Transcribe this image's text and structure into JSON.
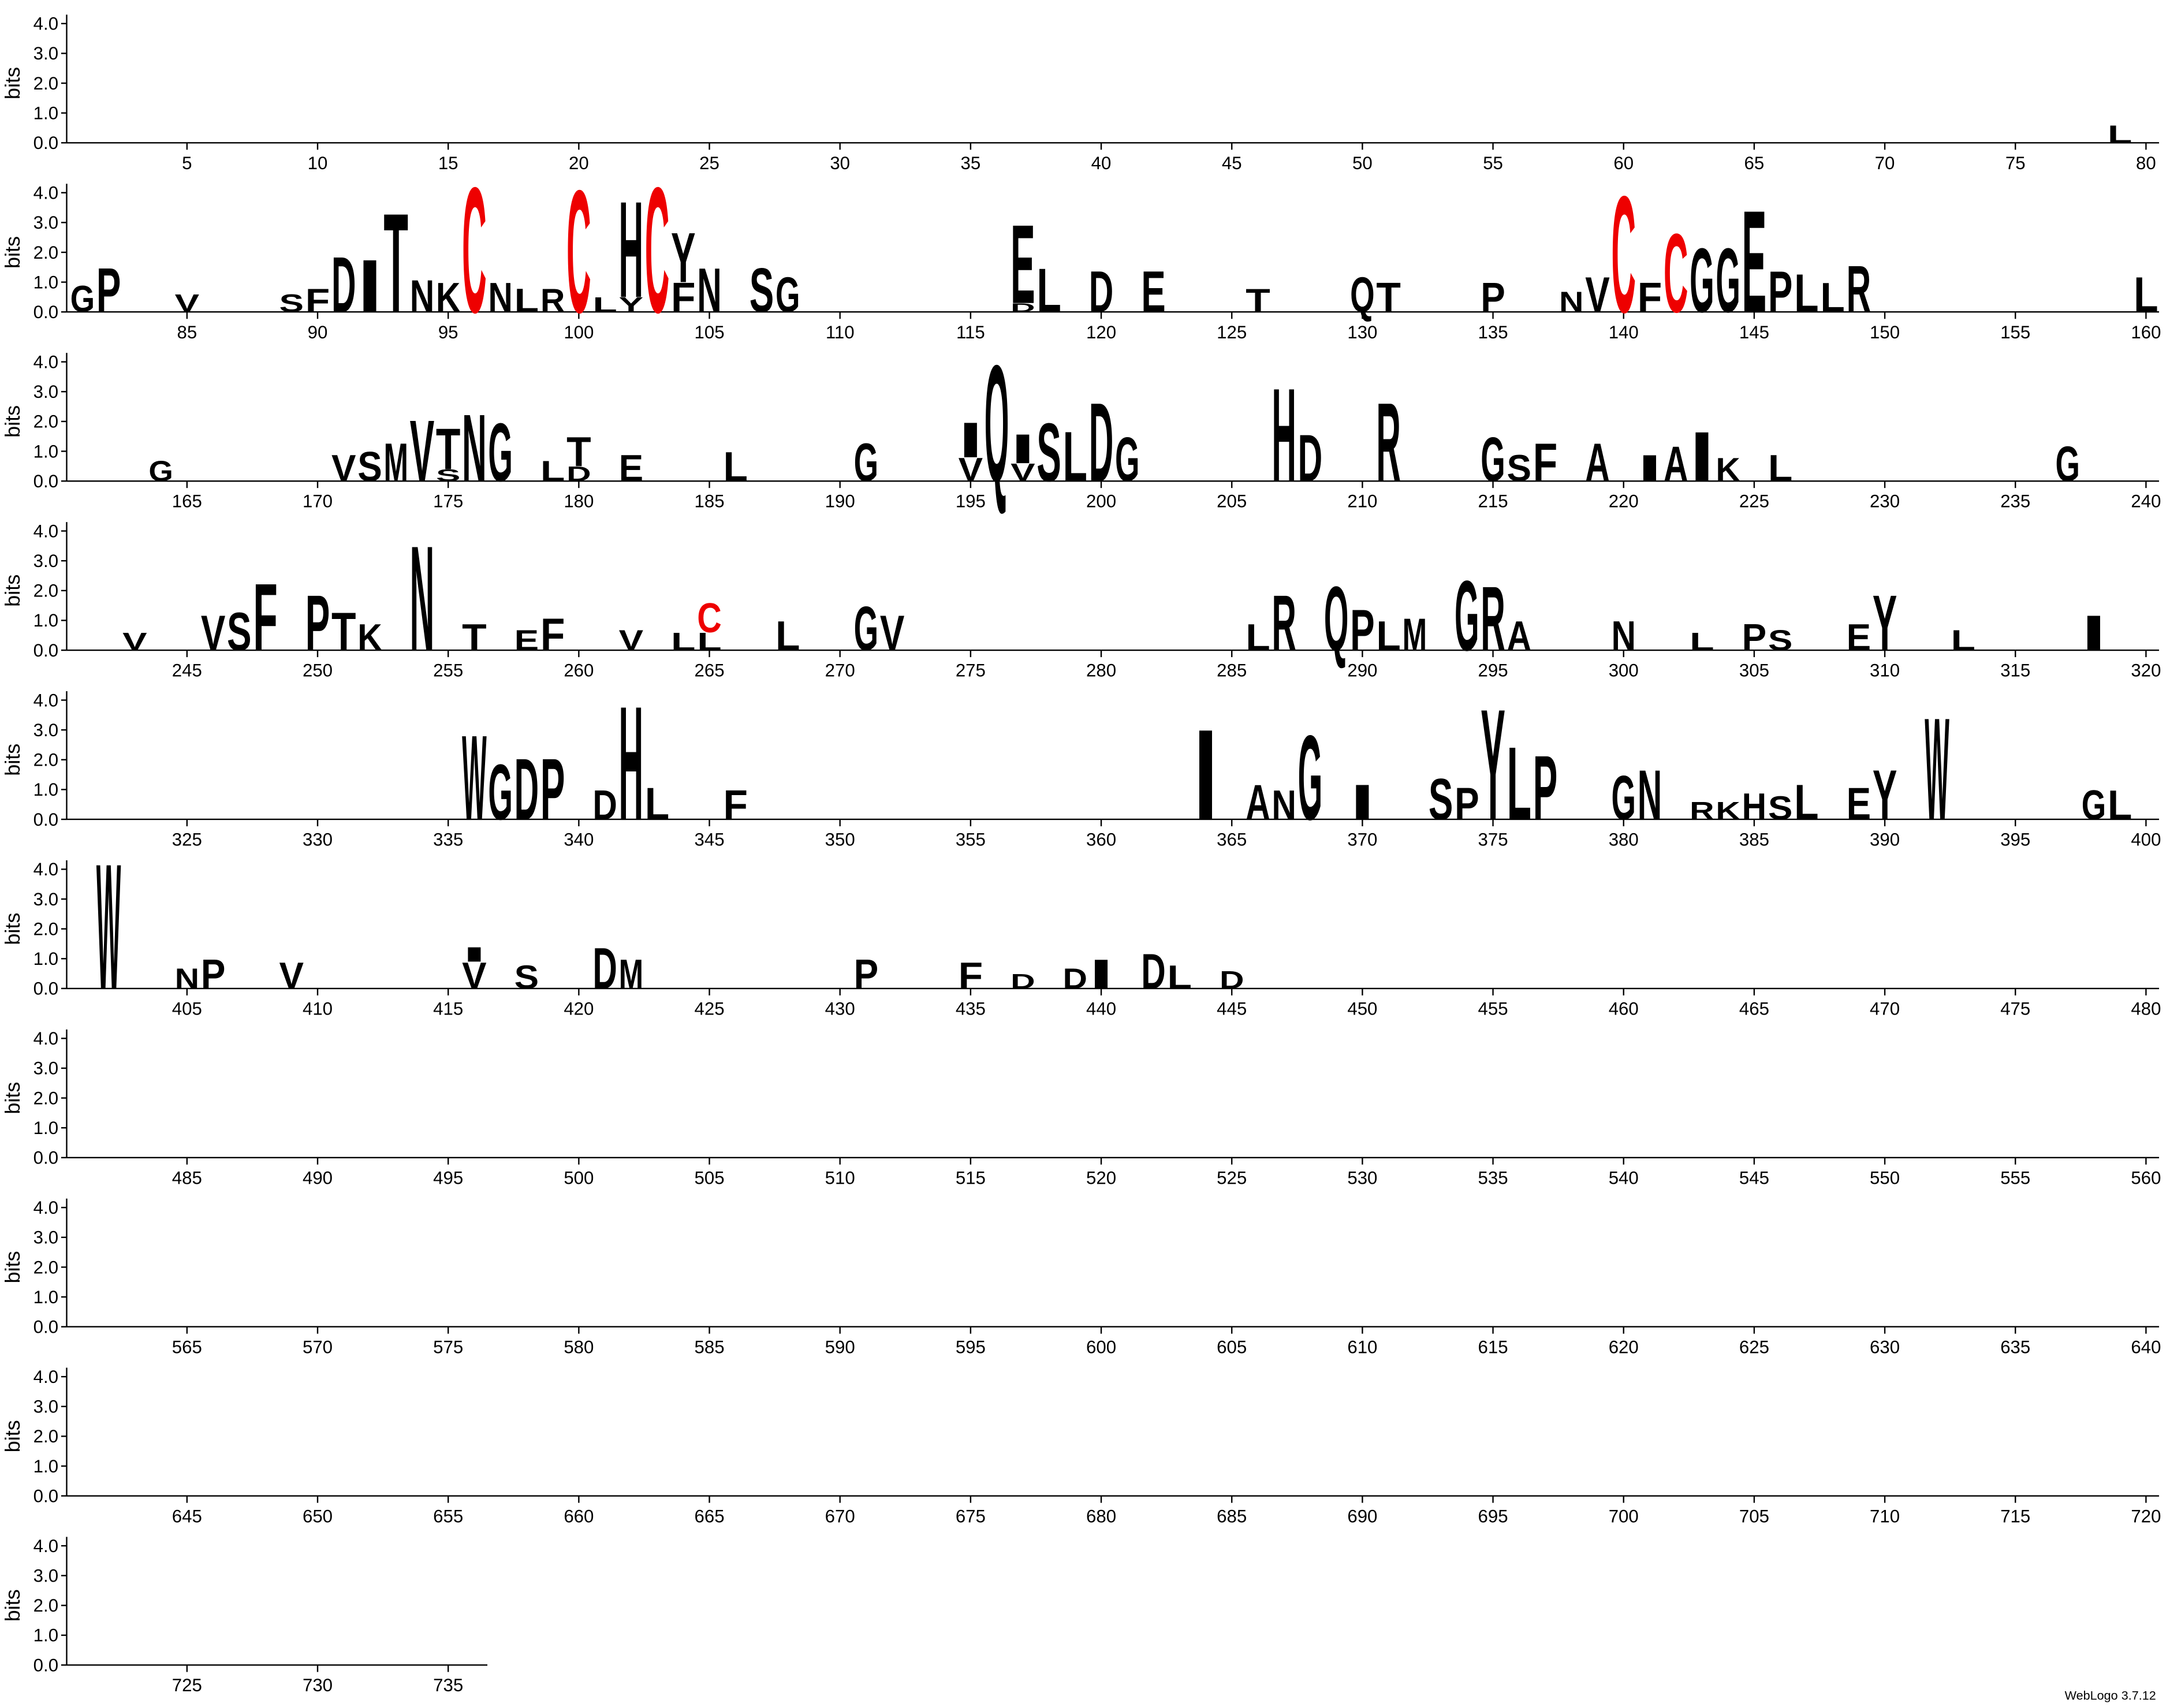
{
  "chart_data": {
    "type": "logo",
    "ylabel": "bits",
    "footer": "WebLogo 3.7.12",
    "ylim": [
      0,
      4.3
    ],
    "yticks": [
      {
        "value": 0,
        "label": "0.0"
      },
      {
        "value": 1,
        "label": "1.0"
      },
      {
        "value": 2,
        "label": "2.0"
      },
      {
        "value": 3,
        "label": "3.0"
      },
      {
        "value": 4,
        "label": "4.0"
      }
    ],
    "xlim": [
      1,
      736
    ],
    "xticks": [
      5,
      10,
      15,
      20,
      25,
      30,
      35,
      40,
      45,
      50,
      55,
      60,
      65,
      70,
      75,
      80,
      85,
      90,
      95,
      100,
      105,
      110,
      115,
      120,
      125,
      130,
      135,
      140,
      145,
      150,
      155,
      160,
      165,
      170,
      175,
      180,
      185,
      190,
      195,
      200,
      205,
      210,
      215,
      220,
      225,
      230,
      235,
      240,
      245,
      250,
      255,
      260,
      265,
      270,
      275,
      280,
      285,
      290,
      295,
      300,
      305,
      310,
      315,
      320,
      325,
      330,
      335,
      340,
      345,
      350,
      355,
      360,
      365,
      370,
      375,
      380,
      385,
      390,
      395,
      400,
      405,
      410,
      415,
      420,
      425,
      430,
      435,
      440,
      445,
      450,
      455,
      460,
      465,
      470,
      475,
      480,
      485,
      490,
      495,
      500,
      505,
      510,
      515,
      520,
      525,
      530,
      535,
      540,
      545,
      550,
      555,
      560,
      565,
      570,
      575,
      580,
      585,
      590,
      595,
      600,
      605,
      610,
      615,
      620,
      625,
      630,
      635,
      640,
      645,
      650,
      655,
      660,
      665,
      670,
      675,
      680,
      685,
      690,
      695,
      700,
      705,
      710,
      715,
      720,
      725,
      730,
      735
    ],
    "color": "#000000",
    "letter_colors": {
      "C": "#ee0000"
    },
    "letters": [
      {
        "position": 79,
        "letter": "L",
        "bits": 0.6
      },
      {
        "position": 81,
        "letter": "G",
        "bits": 0.9
      },
      {
        "position": 82,
        "letter": "P",
        "bits": 1.5
      },
      {
        "position": 85,
        "letter": "V",
        "bits": 0.6
      },
      {
        "position": 89,
        "letter": "S",
        "bits": 0.6
      },
      {
        "position": 90,
        "letter": "F",
        "bits": 0.8
      },
      {
        "position": 91,
        "letter": "D",
        "bits": 1.9
      },
      {
        "position": 92,
        "letter": "I",
        "bits": 1.8
      },
      {
        "position": 93,
        "letter": "T",
        "bits": 3.4
      },
      {
        "position": 94,
        "letter": "N",
        "bits": 1.1
      },
      {
        "position": 95,
        "letter": "K",
        "bits": 1.0
      },
      {
        "position": 96,
        "letter": "C",
        "bits": 4.3
      },
      {
        "position": 97,
        "letter": "N",
        "bits": 1.0
      },
      {
        "position": 98,
        "letter": "L",
        "bits": 0.8
      },
      {
        "position": 99,
        "letter": "R",
        "bits": 0.8
      },
      {
        "position": 100,
        "letter": "C",
        "bits": 4.2
      },
      {
        "position": 101,
        "letter": "L",
        "bits": 0.5
      },
      {
        "position": 102,
        "letter": "Y",
        "bits": 0.5
      },
      {
        "position": 102,
        "letter": "H",
        "bits": 3.3
      },
      {
        "position": 103,
        "letter": "C",
        "bits": 4.3
      },
      {
        "position": 104,
        "letter": "F",
        "bits": 1.0
      },
      {
        "position": 104,
        "letter": "Y",
        "bits": 1.7
      },
      {
        "position": 105,
        "letter": "N",
        "bits": 1.5
      },
      {
        "position": 107,
        "letter": "S",
        "bits": 1.5
      },
      {
        "position": 108,
        "letter": "G",
        "bits": 1.2
      },
      {
        "position": 117,
        "letter": "D",
        "bits": 0.3
      },
      {
        "position": 117,
        "letter": "E",
        "bits": 2.7
      },
      {
        "position": 118,
        "letter": "L",
        "bits": 1.5
      },
      {
        "position": 120,
        "letter": "D",
        "bits": 1.4
      },
      {
        "position": 122,
        "letter": "E",
        "bits": 1.4
      },
      {
        "position": 126,
        "letter": "T",
        "bits": 0.8
      },
      {
        "position": 130,
        "letter": "Q",
        "bits": 1.2
      },
      {
        "position": 131,
        "letter": "T",
        "bits": 1.0
      },
      {
        "position": 135,
        "letter": "P",
        "bits": 1.0
      },
      {
        "position": 138,
        "letter": "N",
        "bits": 0.7
      },
      {
        "position": 139,
        "letter": "V",
        "bits": 1.2
      },
      {
        "position": 140,
        "letter": "C",
        "bits": 4.0
      },
      {
        "position": 141,
        "letter": "F",
        "bits": 1.0
      },
      {
        "position": 142,
        "letter": "C",
        "bits": 2.7
      },
      {
        "position": 143,
        "letter": "G",
        "bits": 2.2
      },
      {
        "position": 144,
        "letter": "G",
        "bits": 2.2
      },
      {
        "position": 145,
        "letter": "E",
        "bits": 3.5
      },
      {
        "position": 146,
        "letter": "P",
        "bits": 1.4
      },
      {
        "position": 147,
        "letter": "L",
        "bits": 1.3
      },
      {
        "position": 148,
        "letter": "L",
        "bits": 1.0
      },
      {
        "position": 149,
        "letter": "R",
        "bits": 1.6
      },
      {
        "position": 160,
        "letter": "L",
        "bits": 1.2
      },
      {
        "position": 164,
        "letter": "G",
        "bits": 0.7
      },
      {
        "position": 171,
        "letter": "V",
        "bits": 0.9
      },
      {
        "position": 172,
        "letter": "S",
        "bits": 1.0
      },
      {
        "position": 173,
        "letter": "M",
        "bits": 1.3
      },
      {
        "position": 174,
        "letter": "V",
        "bits": 2.1
      },
      {
        "position": 175,
        "letter": "S",
        "bits": 0.4
      },
      {
        "position": 175,
        "letter": "T",
        "bits": 1.4
      },
      {
        "position": 176,
        "letter": "N",
        "bits": 2.3
      },
      {
        "position": 177,
        "letter": "G",
        "bits": 2.0
      },
      {
        "position": 179,
        "letter": "L",
        "bits": 0.7
      },
      {
        "position": 180,
        "letter": "D",
        "bits": 0.5
      },
      {
        "position": 180,
        "letter": "T",
        "bits": 1.0
      },
      {
        "position": 182,
        "letter": "E",
        "bits": 0.9
      },
      {
        "position": 186,
        "letter": "L",
        "bits": 1.0
      },
      {
        "position": 191,
        "letter": "G",
        "bits": 1.3
      },
      {
        "position": 195,
        "letter": "V",
        "bits": 0.8
      },
      {
        "position": 195,
        "letter": "I",
        "bits": 1.2
      },
      {
        "position": 196,
        "letter": "Q",
        "bits": 4.0
      },
      {
        "position": 197,
        "letter": "V",
        "bits": 0.6
      },
      {
        "position": 197,
        "letter": "I",
        "bits": 1.0
      },
      {
        "position": 198,
        "letter": "S",
        "bits": 2.0
      },
      {
        "position": 199,
        "letter": "L",
        "bits": 1.7
      },
      {
        "position": 200,
        "letter": "D",
        "bits": 2.7
      },
      {
        "position": 201,
        "letter": "G",
        "bits": 1.5
      },
      {
        "position": 207,
        "letter": "H",
        "bits": 3.2
      },
      {
        "position": 208,
        "letter": "D",
        "bits": 1.6
      },
      {
        "position": 211,
        "letter": "R",
        "bits": 2.7
      },
      {
        "position": 215,
        "letter": "G",
        "bits": 1.5
      },
      {
        "position": 216,
        "letter": "S",
        "bits": 0.9
      },
      {
        "position": 217,
        "letter": "F",
        "bits": 1.3
      },
      {
        "position": 219,
        "letter": "A",
        "bits": 1.3
      },
      {
        "position": 221,
        "letter": "I",
        "bits": 0.9
      },
      {
        "position": 222,
        "letter": "A",
        "bits": 1.2
      },
      {
        "position": 223,
        "letter": "I",
        "bits": 1.7
      },
      {
        "position": 224,
        "letter": "K",
        "bits": 0.8
      },
      {
        "position": 226,
        "letter": "L",
        "bits": 0.9
      },
      {
        "position": 237,
        "letter": "G",
        "bits": 1.2
      },
      {
        "position": 243,
        "letter": "V",
        "bits": 0.6
      },
      {
        "position": 246,
        "letter": "V",
        "bits": 1.2
      },
      {
        "position": 247,
        "letter": "S",
        "bits": 1.3
      },
      {
        "position": 248,
        "letter": "F",
        "bits": 2.3
      },
      {
        "position": 250,
        "letter": "P",
        "bits": 1.9
      },
      {
        "position": 251,
        "letter": "T",
        "bits": 1.3
      },
      {
        "position": 252,
        "letter": "K",
        "bits": 0.9
      },
      {
        "position": 254,
        "letter": "N",
        "bits": 3.6
      },
      {
        "position": 256,
        "letter": "T",
        "bits": 0.9
      },
      {
        "position": 258,
        "letter": "E",
        "bits": 0.7
      },
      {
        "position": 259,
        "letter": "F",
        "bits": 1.1
      },
      {
        "position": 262,
        "letter": "V",
        "bits": 0.7
      },
      {
        "position": 264,
        "letter": "L",
        "bits": 0.6
      },
      {
        "position": 265,
        "letter": "L",
        "bits": 0.6
      },
      {
        "position": 265,
        "letter": "C",
        "bits": 1.0
      },
      {
        "position": 268,
        "letter": "L",
        "bits": 1.0
      },
      {
        "position": 271,
        "letter": "G",
        "bits": 1.5
      },
      {
        "position": 272,
        "letter": "V",
        "bits": 1.2
      },
      {
        "position": 286,
        "letter": "L",
        "bits": 0.9
      },
      {
        "position": 287,
        "letter": "R",
        "bits": 1.9
      },
      {
        "position": 289,
        "letter": "Q",
        "bits": 2.2
      },
      {
        "position": 290,
        "letter": "P",
        "bits": 1.4
      },
      {
        "position": 291,
        "letter": "L",
        "bits": 1.0
      },
      {
        "position": 292,
        "letter": "M",
        "bits": 1.1
      },
      {
        "position": 294,
        "letter": "G",
        "bits": 2.4
      },
      {
        "position": 295,
        "letter": "R",
        "bits": 2.2
      },
      {
        "position": 296,
        "letter": "A",
        "bits": 1.0
      },
      {
        "position": 300,
        "letter": "N",
        "bits": 1.0
      },
      {
        "position": 303,
        "letter": "L",
        "bits": 0.6
      },
      {
        "position": 305,
        "letter": "P",
        "bits": 0.9
      },
      {
        "position": 306,
        "letter": "S",
        "bits": 0.7
      },
      {
        "position": 309,
        "letter": "E",
        "bits": 0.9
      },
      {
        "position": 310,
        "letter": "Y",
        "bits": 1.9
      },
      {
        "position": 313,
        "letter": "L",
        "bits": 0.7
      },
      {
        "position": 318,
        "letter": "I",
        "bits": 1.2
      },
      {
        "position": 336,
        "letter": "W",
        "bits": 2.9
      },
      {
        "position": 337,
        "letter": "G",
        "bits": 1.9
      },
      {
        "position": 338,
        "letter": "D",
        "bits": 2.1
      },
      {
        "position": 339,
        "letter": "P",
        "bits": 2.1
      },
      {
        "position": 341,
        "letter": "D",
        "bits": 1.0
      },
      {
        "position": 342,
        "letter": "H",
        "bits": 3.9
      },
      {
        "position": 343,
        "letter": "L",
        "bits": 1.1
      },
      {
        "position": 346,
        "letter": "F",
        "bits": 1.0
      },
      {
        "position": 364,
        "letter": "I",
        "bits": 3.1
      },
      {
        "position": 366,
        "letter": "A",
        "bits": 1.2
      },
      {
        "position": 367,
        "letter": "N",
        "bits": 1.0
      },
      {
        "position": 368,
        "letter": "G",
        "bits": 2.9
      },
      {
        "position": 370,
        "letter": "I",
        "bits": 1.2
      },
      {
        "position": 373,
        "letter": "S",
        "bits": 1.4
      },
      {
        "position": 374,
        "letter": "P",
        "bits": 1.1
      },
      {
        "position": 375,
        "letter": "Y",
        "bits": 3.8
      },
      {
        "position": 376,
        "letter": "L",
        "bits": 2.5
      },
      {
        "position": 377,
        "letter": "P",
        "bits": 2.2
      },
      {
        "position": 380,
        "letter": "G",
        "bits": 1.5
      },
      {
        "position": 381,
        "letter": "N",
        "bits": 1.7
      },
      {
        "position": 383,
        "letter": "R",
        "bits": 0.6
      },
      {
        "position": 384,
        "letter": "K",
        "bits": 0.6
      },
      {
        "position": 385,
        "letter": "H",
        "bits": 0.9
      },
      {
        "position": 386,
        "letter": "S",
        "bits": 0.8
      },
      {
        "position": 387,
        "letter": "L",
        "bits": 1.2
      },
      {
        "position": 389,
        "letter": "E",
        "bits": 1.1
      },
      {
        "position": 390,
        "letter": "Y",
        "bits": 1.7
      },
      {
        "position": 392,
        "letter": "W",
        "bits": 3.5
      },
      {
        "position": 398,
        "letter": "G",
        "bits": 1.0
      },
      {
        "position": 399,
        "letter": "L",
        "bits": 1.0
      },
      {
        "position": 402,
        "letter": "W",
        "bits": 4.3
      },
      {
        "position": 405,
        "letter": "N",
        "bits": 0.7
      },
      {
        "position": 406,
        "letter": "P",
        "bits": 1.0
      },
      {
        "position": 409,
        "letter": "V",
        "bits": 0.9
      },
      {
        "position": 416,
        "letter": "V",
        "bits": 0.9
      },
      {
        "position": 416,
        "letter": "I",
        "bits": 0.5
      },
      {
        "position": 418,
        "letter": "S",
        "bits": 0.8
      },
      {
        "position": 421,
        "letter": "D",
        "bits": 1.4
      },
      {
        "position": 422,
        "letter": "M",
        "bits": 1.0
      },
      {
        "position": 431,
        "letter": "P",
        "bits": 1.0
      },
      {
        "position": 435,
        "letter": "F",
        "bits": 0.9
      },
      {
        "position": 437,
        "letter": "D",
        "bits": 0.5
      },
      {
        "position": 439,
        "letter": "D",
        "bits": 0.7
      },
      {
        "position": 440,
        "letter": "I",
        "bits": 1.0
      },
      {
        "position": 442,
        "letter": "D",
        "bits": 1.2
      },
      {
        "position": 443,
        "letter": "L",
        "bits": 0.8
      },
      {
        "position": 445,
        "letter": "D",
        "bits": 0.6
      }
    ]
  }
}
